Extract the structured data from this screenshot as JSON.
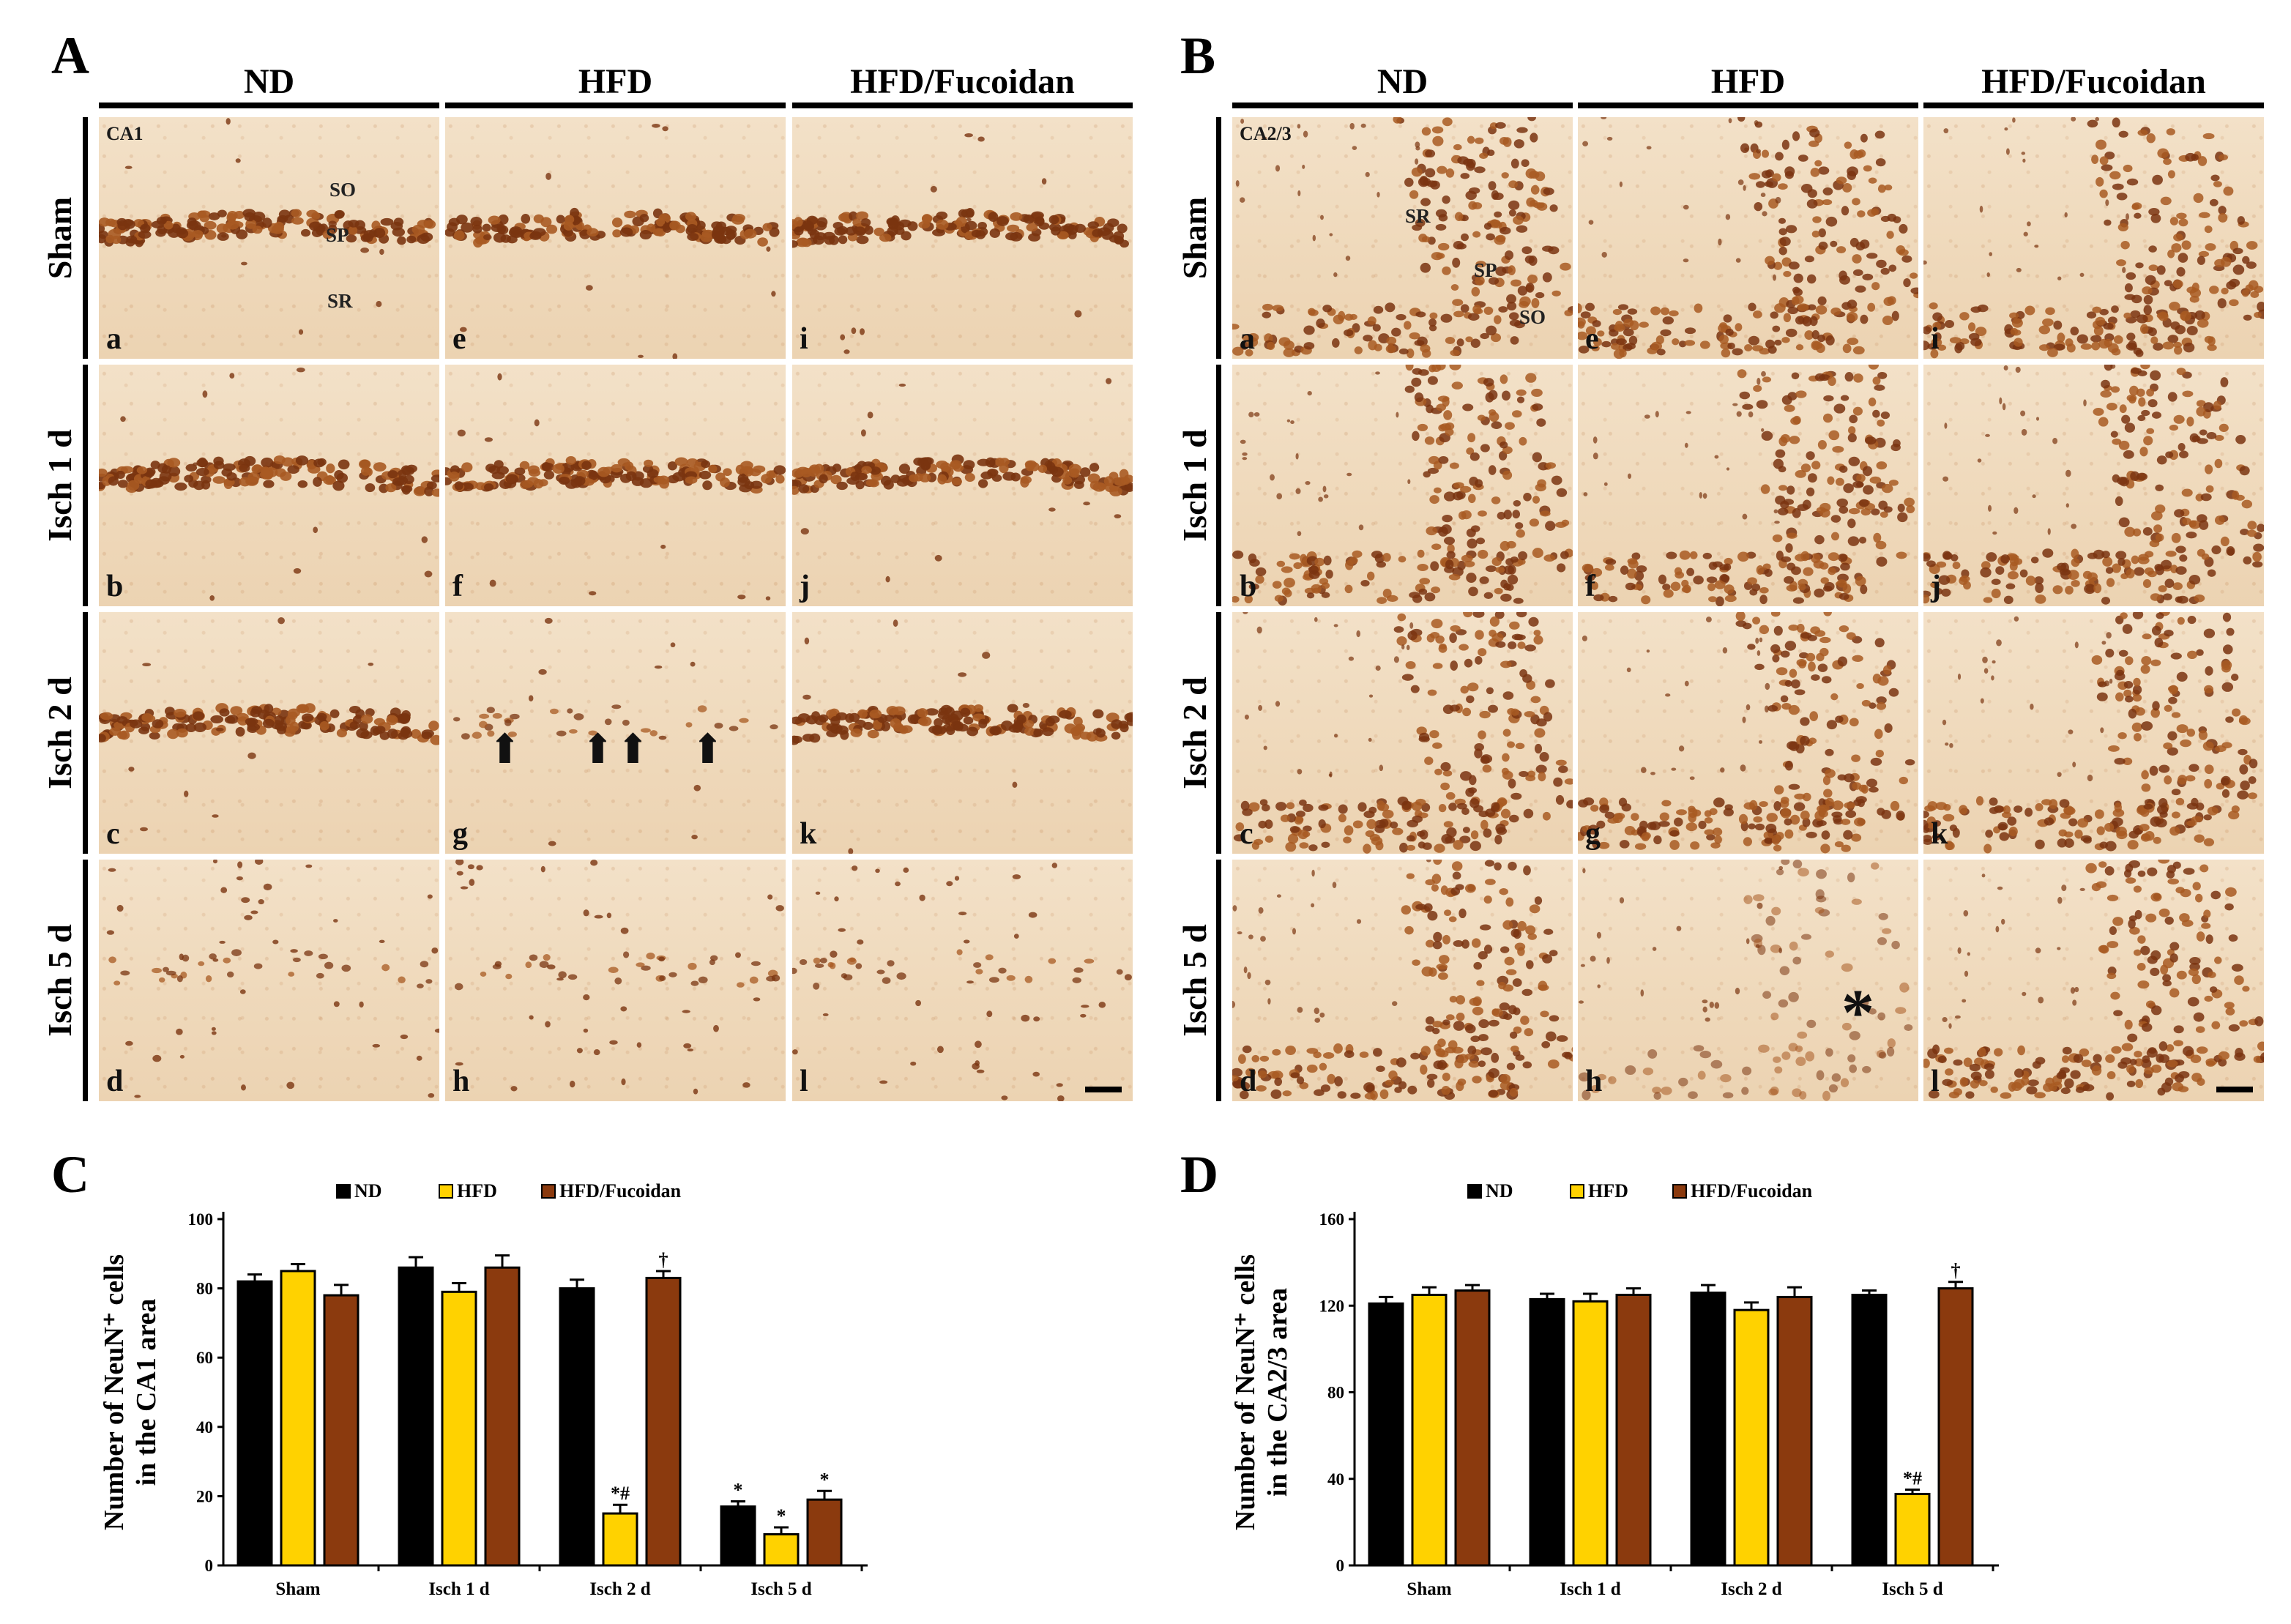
{
  "figure": {
    "panel_labels": {
      "A": "A",
      "B": "B",
      "C": "C",
      "D": "D"
    },
    "columns": [
      "ND",
      "HFD",
      "HFD/Fucoidan"
    ],
    "rows": [
      "Sham",
      "Isch 1 d",
      "Isch 2 d",
      "Isch 5 d"
    ],
    "panel_a": {
      "region_label": "CA1",
      "layers": {
        "so": "SO",
        "sp": "SP",
        "sr": "SR"
      },
      "sub_letters": [
        "a",
        "b",
        "c",
        "d",
        "e",
        "f",
        "g",
        "h",
        "i",
        "j",
        "k",
        "l"
      ],
      "arrow_glyph": "⬆"
    },
    "panel_b": {
      "region_label": "CA2/3",
      "layers": {
        "sr": "SR",
        "sp": "SP",
        "so": "SO"
      },
      "sub_letters": [
        "a",
        "b",
        "c",
        "d",
        "e",
        "f",
        "g",
        "h",
        "i",
        "j",
        "k",
        "l"
      ],
      "asterisk": "*"
    }
  },
  "colors": {
    "nd": "#000000",
    "hfd": "#FFD200",
    "hfd_fucoidan": "#8B3A0E",
    "stain_dark": "#7a3410",
    "stain_mid": "#a85a22",
    "tissue": "#f0dcc0"
  },
  "chart_data": [
    {
      "panel": "C",
      "type": "bar",
      "categories": [
        "Sham",
        "Isch 1 d",
        "Isch 2 d",
        "Isch 5 d"
      ],
      "series": [
        {
          "name": "ND",
          "values": [
            82,
            86,
            80,
            17
          ],
          "errors": [
            2,
            3,
            2.5,
            1.5
          ]
        },
        {
          "name": "HFD",
          "values": [
            85,
            79,
            15,
            9
          ],
          "errors": [
            2,
            2.5,
            2.5,
            2
          ]
        },
        {
          "name": "HFD/Fucoidan",
          "values": [
            78,
            86,
            83,
            19
          ],
          "errors": [
            3,
            3.5,
            2,
            2.5
          ]
        }
      ],
      "annotations": [
        [
          "",
          "",
          "",
          "*"
        ],
        [
          "",
          "",
          "*#",
          "*"
        ],
        [
          "",
          "",
          "†",
          "*"
        ]
      ],
      "ylabel_line1": "Number of NeuN⁺ cells",
      "ylabel_line2": "in the CA1 area",
      "ylim": [
        0,
        100
      ],
      "yticks": [
        0,
        20,
        40,
        60,
        80,
        100
      ],
      "legend_placement": "top-center"
    },
    {
      "panel": "D",
      "type": "bar",
      "categories": [
        "Sham",
        "Isch 1 d",
        "Isch 2 d",
        "Isch 5 d"
      ],
      "series": [
        {
          "name": "ND",
          "values": [
            121,
            123,
            126,
            125
          ],
          "errors": [
            3,
            2.5,
            3.5,
            2
          ]
        },
        {
          "name": "HFD",
          "values": [
            125,
            122,
            118,
            33
          ],
          "errors": [
            3.5,
            3.5,
            3.5,
            2
          ]
        },
        {
          "name": "HFD/Fucoidan",
          "values": [
            127,
            125,
            124,
            128
          ],
          "errors": [
            2.5,
            3,
            4.5,
            3
          ]
        }
      ],
      "annotations": [
        [
          "",
          "",
          "",
          ""
        ],
        [
          "",
          "",
          "",
          "*#"
        ],
        [
          "",
          "",
          "",
          "†"
        ]
      ],
      "ylabel_line1": "Number of NeuN⁺ cells",
      "ylabel_line2": "in the CA2/3 area",
      "ylim": [
        0,
        160
      ],
      "yticks": [
        0,
        40,
        80,
        120,
        160
      ],
      "legend_placement": "top-center"
    }
  ]
}
